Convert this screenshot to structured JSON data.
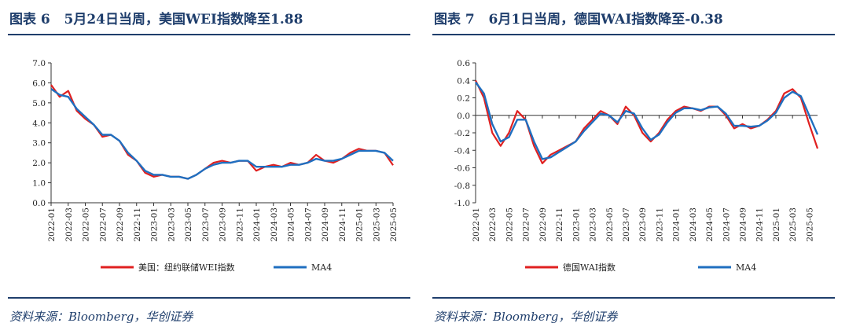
{
  "panels": [
    {
      "fig_title": "图表 6   5月24日当周，美国WEI指数降至1.88",
      "source": "资料来源：Bloomberg，华创证券"
    },
    {
      "fig_title": "图表 7   6月1日当周，德国WAI指数降至-0.38",
      "source": "资料来源：Bloomberg，华创证券"
    }
  ],
  "chart_data": [
    {
      "type": "line",
      "title": "5月24日当周，美国WEI指数降至1.88",
      "x": [
        "2022-01",
        "2022-02",
        "2022-03",
        "2022-04",
        "2022-05",
        "2022-06",
        "2022-07",
        "2022-08",
        "2022-09",
        "2022-10",
        "2022-11",
        "2022-12",
        "2023-01",
        "2023-02",
        "2023-03",
        "2023-04",
        "2023-05",
        "2023-06",
        "2023-07",
        "2023-08",
        "2023-09",
        "2023-10",
        "2023-11",
        "2023-12",
        "2024-01",
        "2024-02",
        "2024-03",
        "2024-04",
        "2024-05",
        "2024-06",
        "2024-07",
        "2024-08",
        "2024-09",
        "2024-10",
        "2024-11",
        "2024-12",
        "2025-01",
        "2025-02",
        "2025-03",
        "2025-04",
        "2025-05"
      ],
      "x_tick_labels": [
        "2022-01",
        "2022-03",
        "2022-05",
        "2022-07",
        "2022-09",
        "2022-11",
        "2023-01",
        "2023-03",
        "2023-05",
        "2023-07",
        "2023-09",
        "2023-11",
        "2024-01",
        "2024-03",
        "2024-05",
        "2024-07",
        "2024-09",
        "2024-11",
        "2025-01",
        "2025-03",
        "2025-05"
      ],
      "ylim": [
        0,
        7
      ],
      "y_ticks": [
        "0.0",
        "1.0",
        "2.0",
        "3.0",
        "4.0",
        "5.0",
        "6.0",
        "7.0"
      ],
      "legend_position": "bottom",
      "series": [
        {
          "name": "美国：纽约联储WEI指数",
          "color": "#e02020",
          "values": [
            5.9,
            5.3,
            5.6,
            4.6,
            4.2,
            3.9,
            3.3,
            3.4,
            3.1,
            2.4,
            2.1,
            1.5,
            1.3,
            1.4,
            1.3,
            1.3,
            1.2,
            1.4,
            1.7,
            2.0,
            2.1,
            2.0,
            2.1,
            2.1,
            1.6,
            1.8,
            1.9,
            1.8,
            2.0,
            1.9,
            2.0,
            2.4,
            2.1,
            2.0,
            2.2,
            2.5,
            2.7,
            2.6,
            2.6,
            2.5,
            1.88
          ]
        },
        {
          "name": "MA4",
          "color": "#1f6fc0",
          "values": [
            5.7,
            5.4,
            5.3,
            4.7,
            4.3,
            3.9,
            3.4,
            3.4,
            3.1,
            2.5,
            2.1,
            1.6,
            1.4,
            1.4,
            1.3,
            1.3,
            1.2,
            1.4,
            1.7,
            1.9,
            2.0,
            2.0,
            2.1,
            2.1,
            1.8,
            1.8,
            1.8,
            1.8,
            1.9,
            1.9,
            2.0,
            2.2,
            2.1,
            2.1,
            2.2,
            2.4,
            2.6,
            2.6,
            2.6,
            2.5,
            2.1
          ]
        }
      ]
    },
    {
      "type": "line",
      "title": "6月1日当周，德国WAI指数降至-0.38",
      "x": [
        "2022-01",
        "2022-02",
        "2022-03",
        "2022-04",
        "2022-05",
        "2022-06",
        "2022-07",
        "2022-08",
        "2022-09",
        "2022-10",
        "2022-11",
        "2022-12",
        "2023-01",
        "2023-02",
        "2023-03",
        "2023-04",
        "2023-05",
        "2023-06",
        "2023-07",
        "2023-08",
        "2023-09",
        "2023-10",
        "2023-11",
        "2023-12",
        "2024-01",
        "2024-02",
        "2024-03",
        "2024-04",
        "2024-05",
        "2024-06",
        "2024-07",
        "2024-08",
        "2024-09",
        "2024-10",
        "2024-11",
        "2024-12",
        "2025-01",
        "2025-02",
        "2025-03",
        "2025-04",
        "2025-05",
        "2025-06"
      ],
      "x_tick_labels": [
        "2022-01",
        "2022-03",
        "2022-05",
        "2022-07",
        "2022-09",
        "2022-11",
        "2023-01",
        "2023-03",
        "2023-05",
        "2023-07",
        "2023-09",
        "2023-11",
        "2024-01",
        "2024-03",
        "2024-05",
        "2024-07",
        "2024-09",
        "2024-11",
        "2025-01",
        "2025-03",
        "2025-05"
      ],
      "ylim": [
        -1.0,
        0.6
      ],
      "y_ticks": [
        "-1.0",
        "-0.8",
        "-0.6",
        "-0.4",
        "-0.2",
        "0.0",
        "0.2",
        "0.4",
        "0.6"
      ],
      "legend_position": "bottom",
      "series": [
        {
          "name": "德国WAI指数",
          "color": "#e02020",
          "values": [
            0.4,
            0.2,
            -0.2,
            -0.35,
            -0.2,
            0.05,
            -0.05,
            -0.35,
            -0.55,
            -0.45,
            -0.4,
            -0.35,
            -0.3,
            -0.15,
            -0.05,
            0.05,
            0.0,
            -0.1,
            0.1,
            0.0,
            -0.2,
            -0.3,
            -0.2,
            -0.05,
            0.05,
            0.1,
            0.08,
            0.05,
            0.1,
            0.1,
            0.0,
            -0.15,
            -0.1,
            -0.15,
            -0.12,
            -0.05,
            0.05,
            0.25,
            0.3,
            0.2,
            -0.1,
            -0.38
          ]
        },
        {
          "name": "MA4",
          "color": "#1f6fc0",
          "values": [
            0.38,
            0.25,
            -0.1,
            -0.3,
            -0.25,
            -0.05,
            -0.05,
            -0.3,
            -0.5,
            -0.48,
            -0.42,
            -0.36,
            -0.3,
            -0.18,
            -0.08,
            0.02,
            0.0,
            -0.08,
            0.05,
            0.02,
            -0.15,
            -0.28,
            -0.22,
            -0.08,
            0.03,
            0.08,
            0.08,
            0.06,
            0.09,
            0.1,
            0.02,
            -0.12,
            -0.12,
            -0.13,
            -0.12,
            -0.06,
            0.03,
            0.2,
            0.27,
            0.22,
            0.0,
            -0.22
          ]
        }
      ]
    }
  ]
}
